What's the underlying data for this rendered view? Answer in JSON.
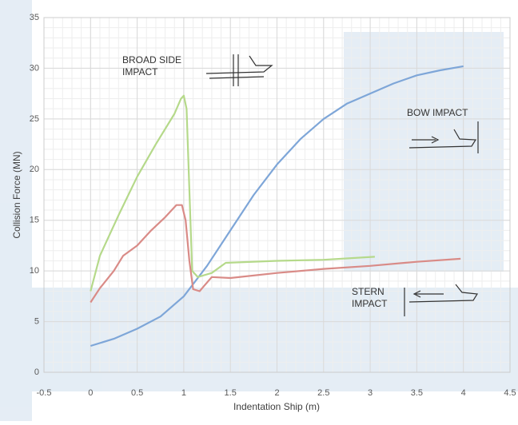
{
  "chart_data": {
    "type": "line",
    "x_label": "Indentation Ship (m)",
    "y_label": "Collision Force (MN)",
    "annotations": [
      "BROAD SIDE\nIMPACT",
      "BOW IMPACT",
      "STERN\nIMPACT"
    ],
    "xlim": [
      -0.5,
      4.5
    ],
    "xticks": [
      -0.5,
      0,
      0.5,
      1,
      1.5,
      2,
      2.5,
      3,
      3.5,
      4,
      4.5
    ],
    "ylim": [
      0,
      35
    ],
    "yticks": [
      0,
      5,
      10,
      15,
      20,
      25,
      30,
      35
    ],
    "grid": true,
    "minor_grid": true,
    "series": [
      {
        "color": "#7ea6d8",
        "x": [
          0,
          0.25,
          0.5,
          0.75,
          1,
          1.25,
          1.5,
          1.75,
          2,
          2.25,
          2.5,
          2.75,
          3,
          3.25,
          3.5,
          3.75,
          4
        ],
        "values": [
          2.6,
          3.3,
          4.3,
          5.5,
          7.5,
          10.5,
          14,
          17.5,
          20.5,
          23,
          25,
          26.5,
          27.5,
          28.5,
          29.3,
          29.8,
          30.2
        ]
      },
      {
        "color": "#b5d98a",
        "x": [
          0,
          0.1,
          0.3,
          0.5,
          0.7,
          0.9,
          0.97,
          1.0,
          1.03,
          1.06,
          1.09,
          1.15,
          1.3,
          1.45,
          2,
          2.5,
          3.05
        ],
        "values": [
          8,
          11.5,
          15.5,
          19.3,
          22.5,
          25.5,
          27,
          27.3,
          26,
          18,
          10,
          9.4,
          9.8,
          10.8,
          11,
          11.1,
          11.4
        ]
      },
      {
        "color": "#d98b87",
        "x": [
          0,
          0.1,
          0.25,
          0.35,
          0.5,
          0.65,
          0.8,
          0.92,
          0.98,
          1.02,
          1.06,
          1.1,
          1.17,
          1.3,
          1.5,
          2,
          2.5,
          3,
          3.5,
          3.97
        ],
        "values": [
          6.9,
          8.3,
          10,
          11.5,
          12.5,
          14,
          15.3,
          16.5,
          16.5,
          15,
          11,
          8.2,
          8,
          9.4,
          9.3,
          9.8,
          10.2,
          10.5,
          10.9,
          11.2
        ]
      }
    ]
  }
}
